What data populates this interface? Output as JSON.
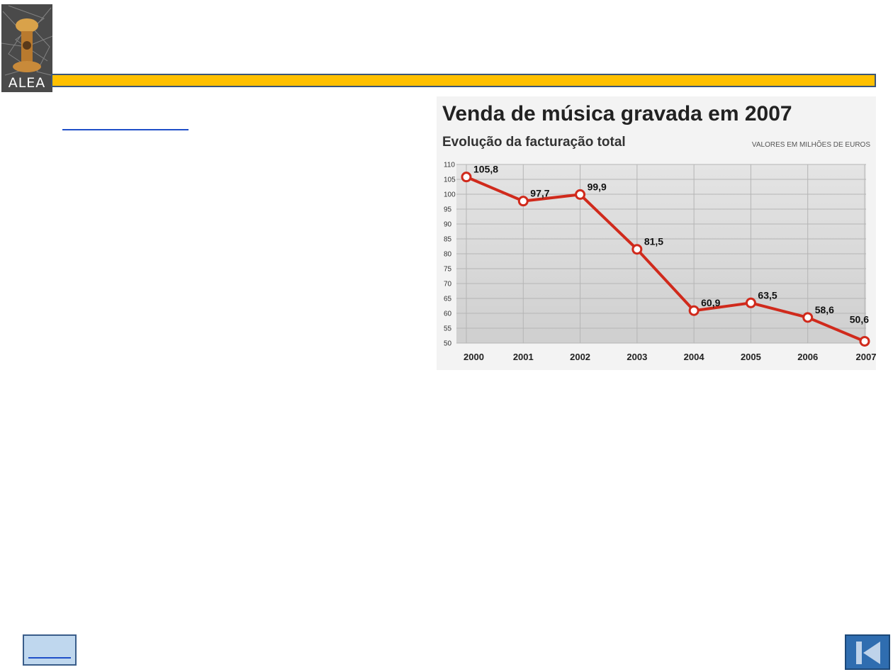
{
  "header": {
    "logo_text": "ALEA"
  },
  "colors": {
    "gold_bar": "#ffc000",
    "line": "#d02a1c",
    "button_blue": "#2f6db0"
  },
  "chart": {
    "title": "Venda de música gravada em 2007",
    "subtitle": "Evolução da facturação total",
    "unit_note": "VALORES EM MILHÕES DE EUROS"
  },
  "chart_data": {
    "type": "line",
    "title": "Venda de música gravada em 2007",
    "subtitle": "Evolução da facturação total",
    "unit": "VALORES EM MILHÕES DE EUROS",
    "x": [
      "2000",
      "2001",
      "2002",
      "2003",
      "2004",
      "2005",
      "2006",
      "2007"
    ],
    "series": [
      {
        "values": [
          105.8,
          97.7,
          99.9,
          81.5,
          60.9,
          63.5,
          58.6,
          50.6
        ],
        "labels": [
          "105,8",
          "97,7",
          "99,9",
          "81,5",
          "60,9",
          "63,5",
          "58,6",
          "50,6"
        ]
      }
    ],
    "ylim": [
      50,
      110
    ],
    "yticks": [
      110,
      105,
      100,
      95,
      90,
      85,
      80,
      75,
      70,
      65,
      60,
      55,
      50
    ],
    "grid": true
  },
  "nav": {
    "home_icon": "home-button-icon",
    "back_icon": "skip-back-icon"
  }
}
